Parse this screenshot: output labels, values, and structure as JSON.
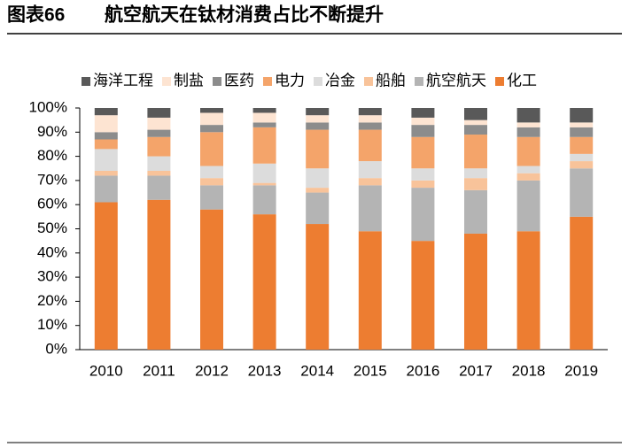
{
  "chart_data": {
    "type": "stacked-bar",
    "figure_label": "图表66",
    "title": "航空航天在钛材消费占比不断提升",
    "categories": [
      "2010",
      "2011",
      "2012",
      "2013",
      "2014",
      "2015",
      "2016",
      "2017",
      "2018",
      "2019"
    ],
    "series": [
      {
        "name": "化工",
        "color": "#ed7d31",
        "values": [
          61,
          62,
          58,
          56,
          52,
          49,
          45,
          48,
          49,
          55
        ]
      },
      {
        "name": "航空航天",
        "color": "#b4b4b4",
        "values": [
          11,
          10,
          10,
          12,
          13,
          19,
          22,
          18,
          21,
          20
        ]
      },
      {
        "name": "船舶",
        "color": "#f8c39a",
        "values": [
          2,
          2,
          3,
          1,
          2,
          3,
          3,
          5,
          3,
          3
        ]
      },
      {
        "name": "冶金",
        "color": "#dcdcdc",
        "values": [
          9,
          6,
          5,
          8,
          8,
          7,
          5,
          4,
          3,
          3
        ]
      },
      {
        "name": "电力",
        "color": "#f4a46a",
        "values": [
          4,
          8,
          14,
          15,
          16,
          13,
          13,
          14,
          12,
          7
        ]
      },
      {
        "name": "医药",
        "color": "#8c8c8c",
        "values": [
          3,
          3,
          3,
          2,
          3,
          3,
          5,
          4,
          4,
          4
        ]
      },
      {
        "name": "制盐",
        "color": "#fde4d2",
        "values": [
          7,
          5,
          5,
          4,
          3,
          3,
          3,
          2,
          2,
          2
        ]
      },
      {
        "name": "海洋工程",
        "color": "#595959",
        "values": [
          3,
          4,
          2,
          2,
          3,
          3,
          4,
          5,
          6,
          6
        ]
      }
    ],
    "ylim": [
      0,
      100
    ],
    "yticks": [
      {
        "value": 0,
        "label": "0%"
      },
      {
        "value": 10,
        "label": "10%"
      },
      {
        "value": 20,
        "label": "20%"
      },
      {
        "value": 30,
        "label": "30%"
      },
      {
        "value": 40,
        "label": "40%"
      },
      {
        "value": 50,
        "label": "50%"
      },
      {
        "value": 60,
        "label": "60%"
      },
      {
        "value": 70,
        "label": "70%"
      },
      {
        "value": 80,
        "label": "80%"
      },
      {
        "value": 90,
        "label": "90%"
      },
      {
        "value": 100,
        "label": "100%"
      }
    ],
    "legend": "top"
  }
}
